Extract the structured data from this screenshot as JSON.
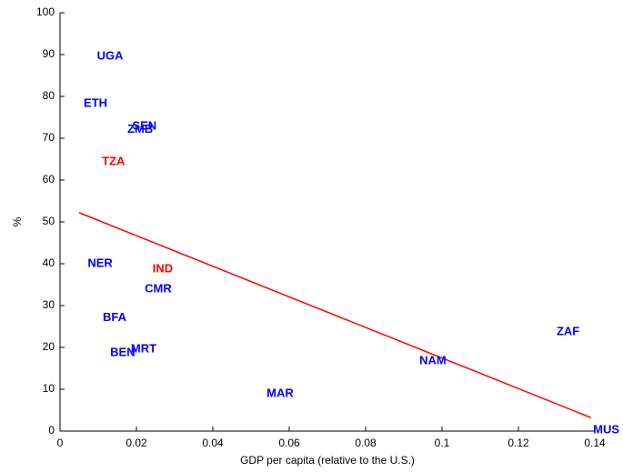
{
  "chart_data": {
    "type": "scatter",
    "xlabel": "GDP per capita (relative to the U.S.)",
    "ylabel": "%",
    "points": [
      {
        "label": "UGA",
        "x": 0.0131,
        "y": 89.5,
        "color": "#0000ff"
      },
      {
        "label": "ETH",
        "x": 0.0093,
        "y": 78.3,
        "color": "#0000ff"
      },
      {
        "label": "SEN",
        "x": 0.0221,
        "y": 72.8,
        "color": "#0000ff"
      },
      {
        "label": "ZMB",
        "x": 0.021,
        "y": 72,
        "color": "#0000ff"
      },
      {
        "label": "TZA",
        "x": 0.014,
        "y": 64.3,
        "color": "#ff0000"
      },
      {
        "label": "NER",
        "x": 0.0105,
        "y": 40,
        "color": "#0000ff"
      },
      {
        "label": "IND",
        "x": 0.0269,
        "y": 38.7,
        "color": "#ff0000"
      },
      {
        "label": "CMR",
        "x": 0.0257,
        "y": 33.9,
        "color": "#0000ff"
      },
      {
        "label": "BFA",
        "x": 0.0143,
        "y": 27,
        "color": "#0000ff"
      },
      {
        "label": "MRT",
        "x": 0.0219,
        "y": 19.6,
        "color": "#0000ff"
      },
      {
        "label": "BEN",
        "x": 0.0164,
        "y": 18.7,
        "color": "#0000ff"
      },
      {
        "label": "MAR",
        "x": 0.0576,
        "y": 8.9,
        "color": "#0000ff"
      },
      {
        "label": "NAM",
        "x": 0.0976,
        "y": 16.7,
        "color": "#0000ff"
      },
      {
        "label": "ZAF",
        "x": 0.133,
        "y": 23.7,
        "color": "#0000ff"
      },
      {
        "label": "MUS",
        "x": 0.143,
        "y": 0.2,
        "color": "#0000ff"
      }
    ],
    "fit": {
      "x": [
        0.005,
        0.139
      ],
      "y": [
        52.2,
        3.2
      ],
      "color": "#ff0000"
    },
    "xlim": [
      0,
      0.14
    ],
    "xticks": [
      0,
      0.02,
      0.04,
      0.06,
      0.08,
      0.1,
      0.12,
      0.14
    ],
    "ylim": [
      0,
      100
    ],
    "yticks": [
      0,
      10,
      20,
      30,
      40,
      50,
      60,
      70,
      80,
      90,
      100
    ]
  }
}
